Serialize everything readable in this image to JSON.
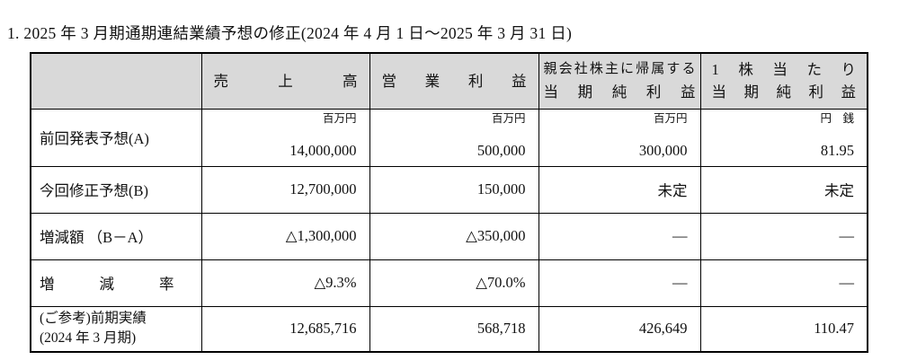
{
  "title": "1. 2025 年 3 月期通期連結業績予想の修正(2024 年 4 月 1 日～2025 年 3 月 31 日)",
  "table": {
    "columns": [
      {
        "line1": "売上高"
      },
      {
        "line1": "営業利益"
      },
      {
        "line1": "親会社株主に帰属する",
        "line2": "当期純利益"
      },
      {
        "line1": "1株当たり",
        "line2": "当期純利益"
      }
    ],
    "units": [
      "百万円",
      "百万円",
      "百万円",
      "円　銭"
    ],
    "rows": [
      {
        "label": "前回発表予想(A)",
        "values": [
          "14,000,000",
          "500,000",
          "300,000",
          "81.95"
        ]
      },
      {
        "label": "今回修正予想(B)",
        "values": [
          "12,700,000",
          "150,000",
          "未定",
          "未定"
        ]
      },
      {
        "label": "増減額 （B－A）",
        "values": [
          "△1,300,000",
          "△350,000",
          "―",
          "―"
        ]
      },
      {
        "label": "増減率",
        "values": [
          "△9.3%",
          "△70.0%",
          "―",
          "―"
        ]
      },
      {
        "label": "(ご参考)前期実績",
        "label2": "(2024 年 3 月期)",
        "values": [
          "12,685,716",
          "568,718",
          "426,649",
          "110.47"
        ]
      }
    ]
  }
}
